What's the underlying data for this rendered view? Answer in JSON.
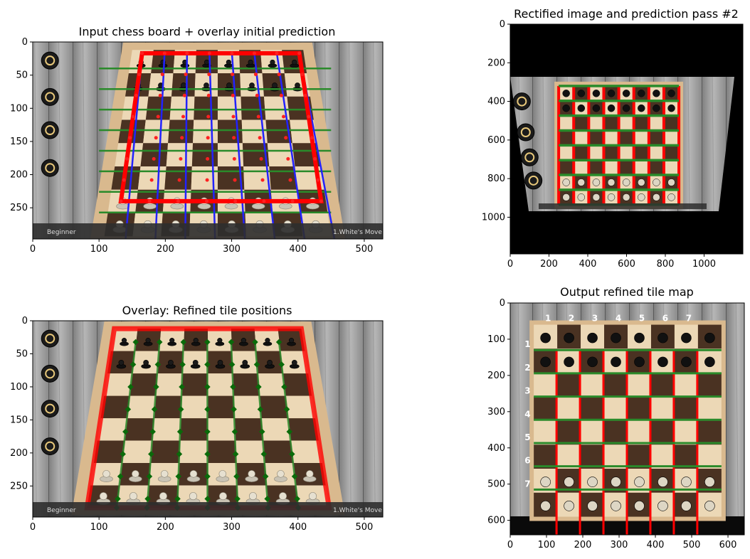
{
  "panels": [
    {
      "title": "Input chess board + overlay initial prediction",
      "xticks": [
        "0",
        "100",
        "200",
        "300",
        "400",
        "500"
      ],
      "yticks": [
        "0",
        "50",
        "100",
        "150",
        "200",
        "250"
      ]
    },
    {
      "title": "Rectified image and prediction pass #2",
      "xticks": [
        "0",
        "200",
        "400",
        "600",
        "800",
        "1000"
      ],
      "yticks": [
        "0",
        "200",
        "400",
        "600",
        "800",
        "1000"
      ]
    },
    {
      "title": "Overlay: Refined tile positions",
      "xticks": [
        "0",
        "100",
        "200",
        "300",
        "400",
        "500"
      ],
      "yticks": [
        "0",
        "50",
        "100",
        "150",
        "200",
        "250"
      ]
    },
    {
      "title": "Output refined tile map",
      "xticks": [
        "0",
        "100",
        "200",
        "300",
        "400",
        "500",
        "600"
      ],
      "yticks": [
        "0",
        "100",
        "200",
        "300",
        "400",
        "500",
        "600"
      ],
      "col_labels": [
        "1",
        "2",
        "3",
        "4",
        "5",
        "6",
        "7"
      ],
      "row_labels": [
        "1",
        "2",
        "3",
        "4",
        "5",
        "6",
        "7"
      ]
    }
  ],
  "screen_text": {
    "left": "Beginner",
    "right": "1.White's Move"
  },
  "chart_data": [
    {
      "type": "image",
      "title": "Input chess board + overlay initial prediction",
      "xlim": [
        0,
        528
      ],
      "ylim": [
        297,
        0
      ],
      "board_corners": [
        [
          165,
          17
        ],
        [
          402,
          17
        ],
        [
          435,
          240
        ],
        [
          133,
          240
        ]
      ]
    },
    {
      "type": "image",
      "title": "Rectified image and prediction pass #2",
      "xlim": [
        0,
        1200
      ],
      "ylim": [
        1190,
        0
      ],
      "grid_x_range": [
        250,
        870
      ],
      "grid_y_range": [
        320,
        935
      ]
    },
    {
      "type": "image",
      "title": "Overlay: Refined tile positions",
      "xlim": [
        0,
        528
      ],
      "ylim": [
        297,
        0
      ],
      "board_corners": [
        [
          123,
          12
        ],
        [
          405,
          12
        ],
        [
          447,
          283
        ],
        [
          82,
          283
        ]
      ]
    },
    {
      "type": "image",
      "title": "Output refined tile map",
      "xlim": [
        0,
        645
      ],
      "ylim": [
        640,
        0
      ],
      "grid_x_range": [
        65,
        582
      ],
      "grid_y_range": [
        130,
        515
      ]
    }
  ],
  "colors": {
    "initial_outline": "#ff0000",
    "vertical_lines": "#2222ff",
    "horizontal_lines": "#2a8a2a",
    "tile_points": "#0a6a0a",
    "dark_square": "#4a3222",
    "light_square": "#ecd8b6"
  }
}
